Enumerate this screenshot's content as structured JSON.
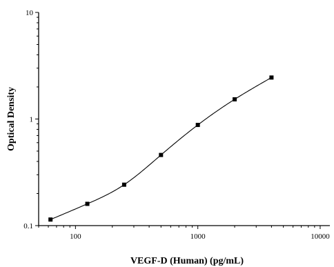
{
  "chart_data": {
    "type": "scatter",
    "xlabel": "VEGF-D (Human) (pg/mL)",
    "ylabel": "Optical Density",
    "x_scale": "log",
    "y_scale": "log",
    "xlim": [
      50,
      12000
    ],
    "ylim": [
      0.1,
      10
    ],
    "x_ticks": [
      {
        "value": 100,
        "label": "100"
      },
      {
        "value": 1000,
        "label": "1000"
      },
      {
        "value": 10000,
        "label": "10000"
      }
    ],
    "y_ticks": [
      {
        "value": 0.1,
        "label": "0.1"
      },
      {
        "value": 1,
        "label": "1"
      },
      {
        "value": 10,
        "label": "10"
      }
    ],
    "grid": false,
    "series": [
      {
        "marker": "square",
        "color": "#000000",
        "fit": "4-parameter logistic curve",
        "x": [
          62.5,
          125,
          250,
          500,
          1000,
          2000,
          4000
        ],
        "y": [
          0.114,
          0.16,
          0.242,
          0.46,
          0.88,
          1.53,
          2.45
        ]
      }
    ]
  }
}
